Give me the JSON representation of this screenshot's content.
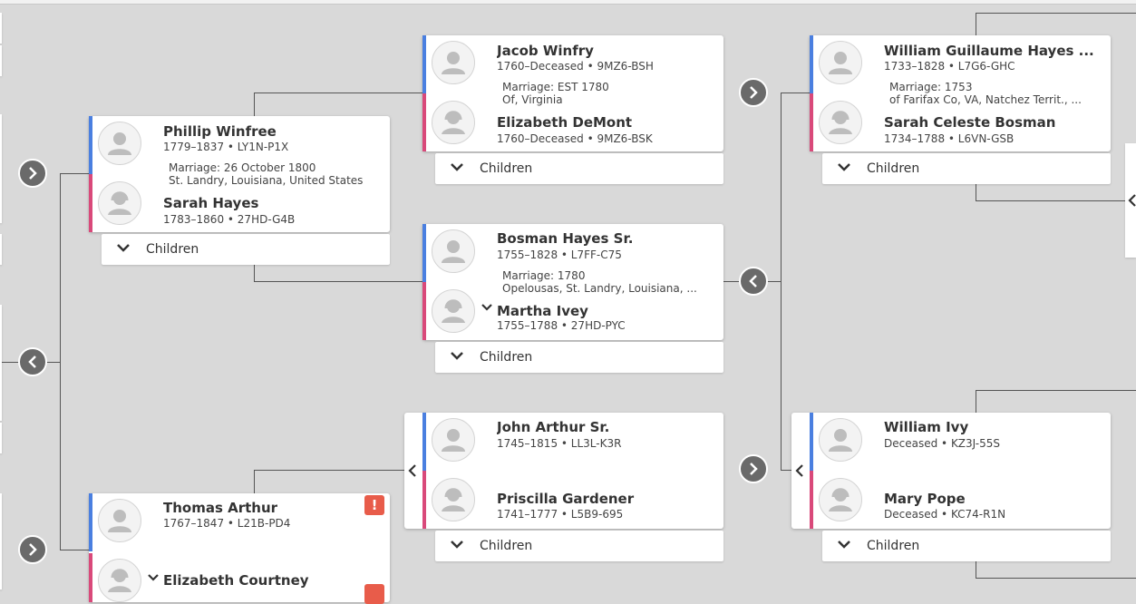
{
  "colors": {
    "male_accent": "#4a7fe0",
    "female_accent": "#d9497a",
    "warning": "#e85c4a",
    "background": "#d9d9d9"
  },
  "children_label": "Children",
  "couples": {
    "winfrey_demont": {
      "husband": {
        "name": "Jacob Winfry",
        "dates": "1760–Deceased",
        "pid": "9MZ6-BSH"
      },
      "marriage": {
        "line1": "Marriage: EST 1780",
        "line2": "Of, Virginia"
      },
      "wife": {
        "name": "Elizabeth DeMont",
        "dates": "1760–Deceased",
        "pid": "9MZ6-BSK"
      }
    },
    "hayes_bosman": {
      "husband": {
        "name": "William Guillaume Hayes ...",
        "dates": "1733–1828",
        "pid": "L7G6-GHC"
      },
      "marriage": {
        "line1": "Marriage: 1753",
        "line2": "of Farifax Co, VA, Natchez Territ., ..."
      },
      "wife": {
        "name": "Sarah Celeste Bosman",
        "dates": "1734–1788",
        "pid": "L6VN-GSB"
      }
    },
    "winfree_hayes": {
      "husband": {
        "name": "Phillip Winfree",
        "dates": "1779–1837",
        "pid": "LY1N-P1X"
      },
      "marriage": {
        "line1": "Marriage: 26 October 1800",
        "line2": "St. Landry, Louisiana, United States"
      },
      "wife": {
        "name": "Sarah Hayes",
        "dates": "1783–1860",
        "pid": "27HD-G4B"
      }
    },
    "hayes_ivey": {
      "husband": {
        "name": "Bosman Hayes Sr.",
        "dates": "1755–1828",
        "pid": "L7FF-C75"
      },
      "marriage": {
        "line1": "Marriage: 1780",
        "line2": "Opelousas, St. Landry, Louisiana, ..."
      },
      "wife": {
        "name": "Martha Ivey",
        "dates": "1755–1788",
        "pid": "27HD-PYC"
      }
    },
    "arthur_gardener": {
      "husband": {
        "name": "John Arthur Sr.",
        "dates": "1745–1815",
        "pid": "LL3L-K3R"
      },
      "wife": {
        "name": "Priscilla Gardener",
        "dates": "1741–1777",
        "pid": "L5B9-695"
      }
    },
    "ivy_pope": {
      "husband": {
        "name": "William Ivy",
        "dates": "Deceased",
        "pid": "KZ3J-55S"
      },
      "wife": {
        "name": "Mary Pope",
        "dates": "Deceased",
        "pid": "KC74-R1N"
      }
    },
    "arthur_courtney": {
      "husband": {
        "name": "Thomas Arthur",
        "dates": "1767–1847",
        "pid": "L21B-PD4"
      },
      "wife": {
        "name": "Elizabeth Courtney"
      },
      "warning_icon": "!"
    }
  }
}
